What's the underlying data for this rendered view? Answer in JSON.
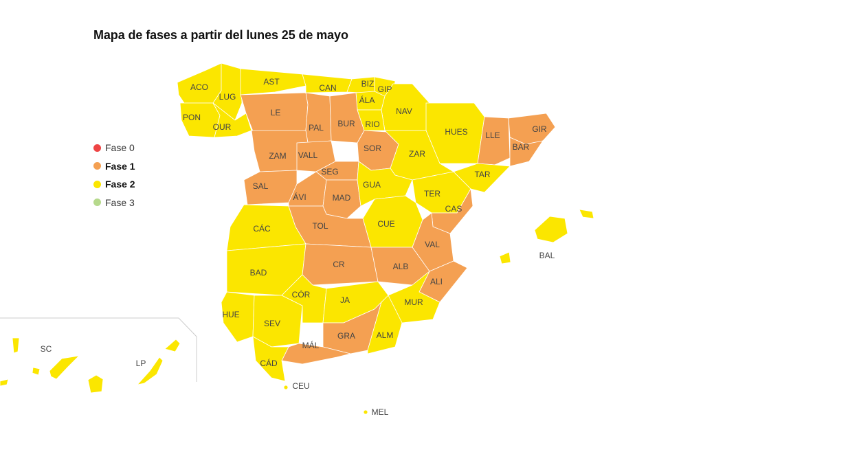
{
  "title": "Mapa de fases a partir del lunes 25 de mayo",
  "colors": {
    "fase0": "#ee4444",
    "fase1": "#f4a052",
    "fase2": "#fbe600",
    "fase3": "#b6d98c"
  },
  "legend": [
    {
      "label": "Fase 0",
      "color": "#ee4444",
      "bold": false
    },
    {
      "label": "Fase 1",
      "color": "#f4a052",
      "bold": true
    },
    {
      "label": "Fase 2",
      "color": "#fbe600",
      "bold": true
    },
    {
      "label": "Fase 3",
      "color": "#b6d98c",
      "bold": false
    }
  ],
  "provinces": [
    {
      "code": "ACO",
      "fase": 2
    },
    {
      "code": "LUG",
      "fase": 2
    },
    {
      "code": "AST",
      "fase": 2
    },
    {
      "code": "CAN",
      "fase": 2
    },
    {
      "code": "BIZ",
      "fase": 2
    },
    {
      "code": "GIP",
      "fase": 2
    },
    {
      "code": "ÁLA",
      "fase": 2
    },
    {
      "code": "NAV",
      "fase": 2
    },
    {
      "code": "PON",
      "fase": 2
    },
    {
      "code": "OUR",
      "fase": 2
    },
    {
      "code": "LE",
      "fase": 1
    },
    {
      "code": "PAL",
      "fase": 1
    },
    {
      "code": "BUR",
      "fase": 1
    },
    {
      "code": "RIO",
      "fase": 2
    },
    {
      "code": "HUES",
      "fase": 2
    },
    {
      "code": "LLE",
      "fase": 1
    },
    {
      "code": "GIR",
      "fase": 1
    },
    {
      "code": "BAR",
      "fase": 1
    },
    {
      "code": "ZAM",
      "fase": 1
    },
    {
      "code": "VALL",
      "fase": 1
    },
    {
      "code": "SOR",
      "fase": 1
    },
    {
      "code": "ZAR",
      "fase": 2
    },
    {
      "code": "SEG",
      "fase": 1
    },
    {
      "code": "TAR",
      "fase": 2
    },
    {
      "code": "SAL",
      "fase": 1
    },
    {
      "code": "GUA",
      "fase": 2
    },
    {
      "code": "ÁVI",
      "fase": 1
    },
    {
      "code": "MAD",
      "fase": 1
    },
    {
      "code": "TER",
      "fase": 2
    },
    {
      "code": "CAS",
      "fase": 1
    },
    {
      "code": "CÁC",
      "fase": 2
    },
    {
      "code": "TOL",
      "fase": 1
    },
    {
      "code": "CUE",
      "fase": 2
    },
    {
      "code": "BAL",
      "fase": 2
    },
    {
      "code": "VAL",
      "fase": 1
    },
    {
      "code": "BAD",
      "fase": 2
    },
    {
      "code": "CR",
      "fase": 1
    },
    {
      "code": "ALB",
      "fase": 1
    },
    {
      "code": "ALI",
      "fase": 1
    },
    {
      "code": "CÓR",
      "fase": 2
    },
    {
      "code": "JA",
      "fase": 2
    },
    {
      "code": "MUR",
      "fase": 2
    },
    {
      "code": "HUE",
      "fase": 2
    },
    {
      "code": "SEV",
      "fase": 2
    },
    {
      "code": "GRA",
      "fase": 1
    },
    {
      "code": "ALM",
      "fase": 2
    },
    {
      "code": "MÁL",
      "fase": 1
    },
    {
      "code": "CÁD",
      "fase": 2
    },
    {
      "code": "CEU",
      "fase": 2
    },
    {
      "code": "MEL",
      "fase": 2
    },
    {
      "code": "SC",
      "fase": 2
    },
    {
      "code": "LP",
      "fase": 2
    }
  ]
}
